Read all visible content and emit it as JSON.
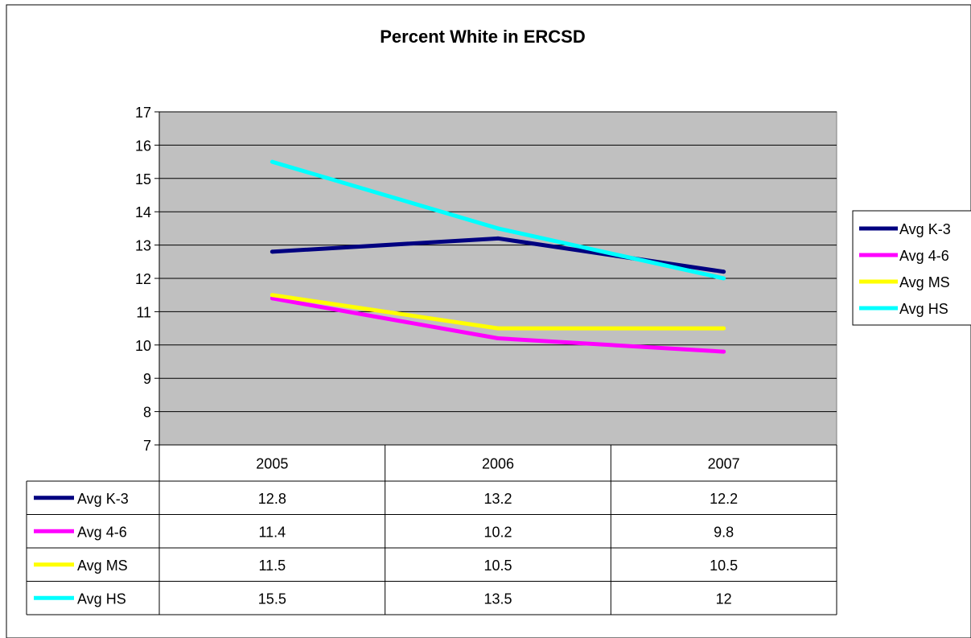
{
  "chart_data": {
    "type": "line",
    "title": "Percent White in ERCSD",
    "categories": [
      "2005",
      "2006",
      "2007"
    ],
    "ylim": [
      7,
      17
    ],
    "yticks": [
      7,
      8,
      9,
      10,
      11,
      12,
      13,
      14,
      15,
      16,
      17
    ],
    "grid": true,
    "legend_placement": "right",
    "plot_background": "#C0C0C0",
    "series": [
      {
        "name": "Avg K-3",
        "color": "#000080",
        "values": [
          12.8,
          13.2,
          12.2
        ],
        "labels": [
          "12.8",
          "13.2",
          "12.2"
        ]
      },
      {
        "name": "Avg 4-6",
        "color": "#FF00FF",
        "values": [
          11.4,
          10.2,
          9.8
        ],
        "labels": [
          "11.4",
          "10.2",
          "9.8"
        ]
      },
      {
        "name": "Avg MS",
        "color": "#FFFF00",
        "values": [
          11.5,
          10.5,
          10.5
        ],
        "labels": [
          "11.5",
          "10.5",
          "10.5"
        ]
      },
      {
        "name": "Avg HS",
        "color": "#00FFFF",
        "values": [
          15.5,
          13.5,
          12
        ],
        "labels": [
          "15.5",
          "13.5",
          "12"
        ]
      }
    ]
  }
}
